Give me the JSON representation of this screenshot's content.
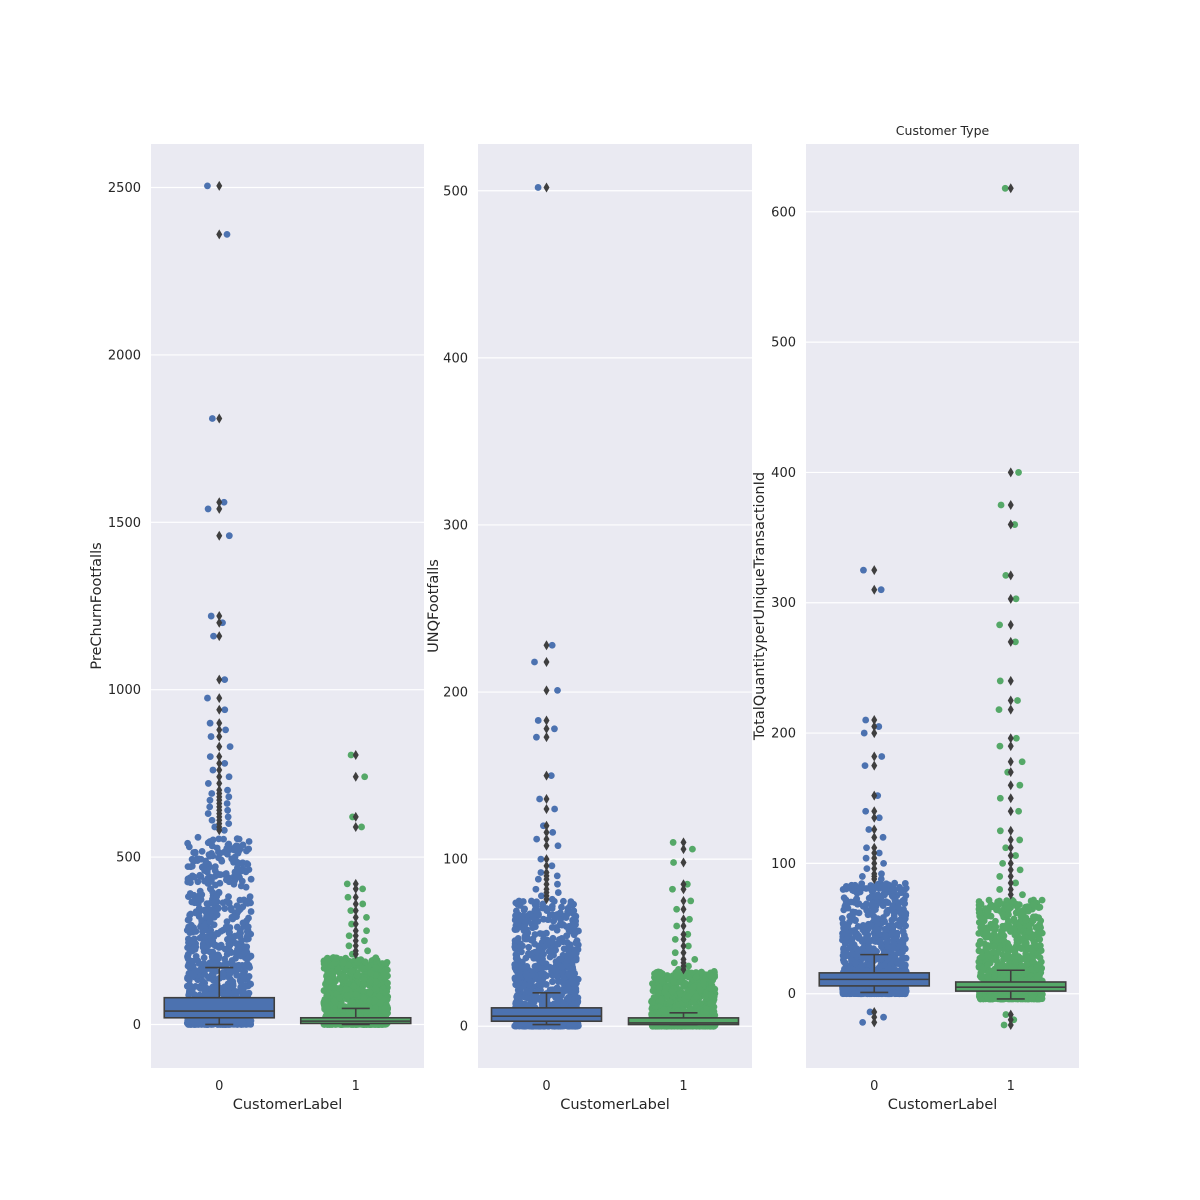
{
  "figure": {
    "colors": {
      "background": "#EAEAF2",
      "grid": "#FFFFFF",
      "group_0": "#4C72B0",
      "group_1": "#55A868",
      "box_edge": "#3F3F3F",
      "outlier": "#3F3F3F"
    }
  },
  "chart_data": [
    {
      "type": "box",
      "overlay": "strip",
      "title": "",
      "xlabel": "CustomerLabel",
      "ylabel": "PreChurnFootfalls",
      "categories": [
        "0",
        "1"
      ],
      "ylim": [
        -130,
        2630
      ],
      "yticks": [
        0,
        500,
        1000,
        1500,
        2000,
        2500
      ],
      "grid": true,
      "boxes": [
        {
          "category": "0",
          "whisker_low": 0,
          "q1": 20,
          "median": 40,
          "q3": 80,
          "whisker_high": 170,
          "strip_max": 560
        },
        {
          "category": "1",
          "whisker_low": 0,
          "q1": 3,
          "median": 10,
          "q3": 20,
          "whisker_high": 48,
          "strip_max": 200
        }
      ],
      "outliers": [
        {
          "category": "0",
          "values": [
            2505,
            2360,
            1810,
            1560,
            1540,
            1460,
            1220,
            1200,
            1160,
            1030,
            975,
            940,
            900,
            880,
            860,
            830,
            800,
            780,
            760,
            740,
            720,
            700,
            690,
            680,
            670,
            660,
            650,
            640,
            630,
            620,
            610,
            600,
            590,
            580
          ]
        },
        {
          "category": "1",
          "values": [
            805,
            740,
            620,
            590,
            420,
            405,
            380,
            360,
            340,
            320,
            300,
            280,
            265,
            250,
            235,
            220,
            210
          ]
        }
      ]
    },
    {
      "type": "box",
      "overlay": "strip",
      "title": "",
      "xlabel": "CustomerLabel",
      "ylabel": "UNQFootfalls",
      "categories": [
        "0",
        "1"
      ],
      "ylim": [
        -25,
        528
      ],
      "yticks": [
        0,
        100,
        200,
        300,
        400,
        500
      ],
      "grid": true,
      "boxes": [
        {
          "category": "0",
          "whisker_low": 1,
          "q1": 3,
          "median": 6,
          "q3": 11,
          "whisker_high": 20,
          "strip_max": 75
        },
        {
          "category": "1",
          "whisker_low": 1,
          "q1": 1,
          "median": 2,
          "q3": 5,
          "whisker_high": 8,
          "strip_max": 33
        }
      ],
      "outliers": [
        {
          "category": "0",
          "values": [
            502,
            228,
            218,
            201,
            183,
            178,
            173,
            150,
            136,
            130,
            120,
            116,
            112,
            108,
            100,
            96,
            92,
            90,
            88,
            85,
            82,
            80,
            78,
            76
          ]
        },
        {
          "category": "1",
          "values": [
            110,
            106,
            98,
            85,
            82,
            75,
            70,
            64,
            60,
            55,
            52,
            48,
            44,
            40,
            38,
            36,
            34
          ]
        }
      ]
    },
    {
      "type": "box",
      "overlay": "strip",
      "title": "Customer Type",
      "xlabel": "CustomerLabel",
      "ylabel": "TotalQuantityperUniqueTransactionId",
      "categories": [
        "0",
        "1"
      ],
      "ylim": [
        -57,
        652
      ],
      "yticks": [
        0,
        100,
        200,
        300,
        400,
        500,
        600
      ],
      "grid": true,
      "boxes": [
        {
          "category": "0",
          "whisker_low": 1,
          "q1": 6,
          "median": 11,
          "q3": 16,
          "whisker_high": 30,
          "strip_max": 85
        },
        {
          "category": "1",
          "whisker_low": -4,
          "q1": 2,
          "median": 5,
          "q3": 9,
          "whisker_high": 18,
          "strip_max": 72
        }
      ],
      "outliers": [
        {
          "category": "0",
          "values": [
            325,
            310,
            210,
            205,
            200,
            182,
            175,
            152,
            140,
            135,
            126,
            120,
            112,
            108,
            104,
            100,
            96,
            92,
            90,
            88,
            -14,
            -18,
            -22
          ]
        },
        {
          "category": "1",
          "values": [
            618,
            400,
            375,
            360,
            321,
            303,
            283,
            270,
            240,
            225,
            218,
            196,
            190,
            178,
            170,
            160,
            150,
            140,
            125,
            118,
            112,
            106,
            100,
            95,
            90,
            85,
            80,
            76,
            -16,
            -20,
            -24
          ]
        }
      ]
    }
  ]
}
